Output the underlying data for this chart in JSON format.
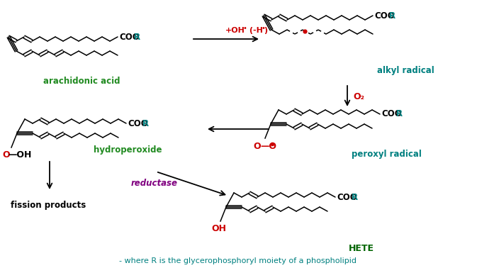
{
  "bg_color": "#ffffff",
  "bottom_text": "- where R is the glycerophosphoryl moiety of a phospholipid",
  "label_arachidonic": "arachidonic acid",
  "label_alkyl": "alkyl radical",
  "label_hydroperoxide": "hydroperoxide",
  "label_peroxyl": "peroxyl radical",
  "label_fission": "fission products",
  "label_hete": "HETE",
  "label_reductase": "reductase",
  "label_o2": "O₂",
  "label_oh": "+OH• (-H•)",
  "green": "#228B22",
  "teal": "#008080",
  "red": "#cc0000",
  "purple": "#800080",
  "black": "#000000",
  "dark_green": "#006400"
}
